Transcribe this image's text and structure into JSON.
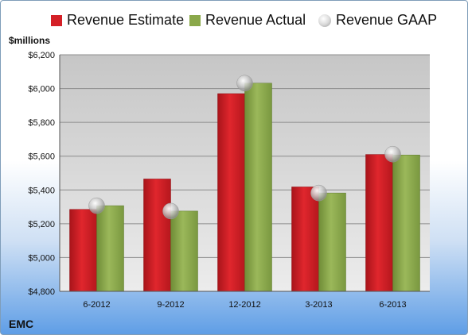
{
  "legend": {
    "estimate": "Revenue Estimate",
    "actual": "Revenue Actual",
    "gaap": "Revenue GAAP"
  },
  "unit_label": "$millions",
  "company": "EMC",
  "colors": {
    "estimate": "#d42027",
    "actual": "#8aa84a",
    "gaap": "#b8b8b8"
  },
  "chart_data": {
    "type": "bar",
    "categories": [
      "6-2012",
      "9-2012",
      "12-2012",
      "3-2013",
      "6-2013"
    ],
    "series": [
      {
        "name": "Revenue Estimate",
        "values": [
          5285,
          5465,
          5970,
          5418,
          5610
        ]
      },
      {
        "name": "Revenue Actual",
        "values": [
          5307,
          5275,
          6032,
          5382,
          5607
        ]
      },
      {
        "name": "Revenue GAAP",
        "values": [
          5307,
          5275,
          6032,
          5382,
          5612
        ]
      }
    ],
    "ylim": [
      4800,
      6200
    ],
    "yticks": [
      4800,
      5000,
      5200,
      5400,
      5600,
      5800,
      6000,
      6200
    ],
    "ytick_labels": [
      "$4,800",
      "$5,000",
      "$5,200",
      "$5,400",
      "$5,600",
      "$5,800",
      "$6,000",
      "$6,200"
    ],
    "ylabel": "$millions",
    "grid": true,
    "legend_position": "top"
  }
}
